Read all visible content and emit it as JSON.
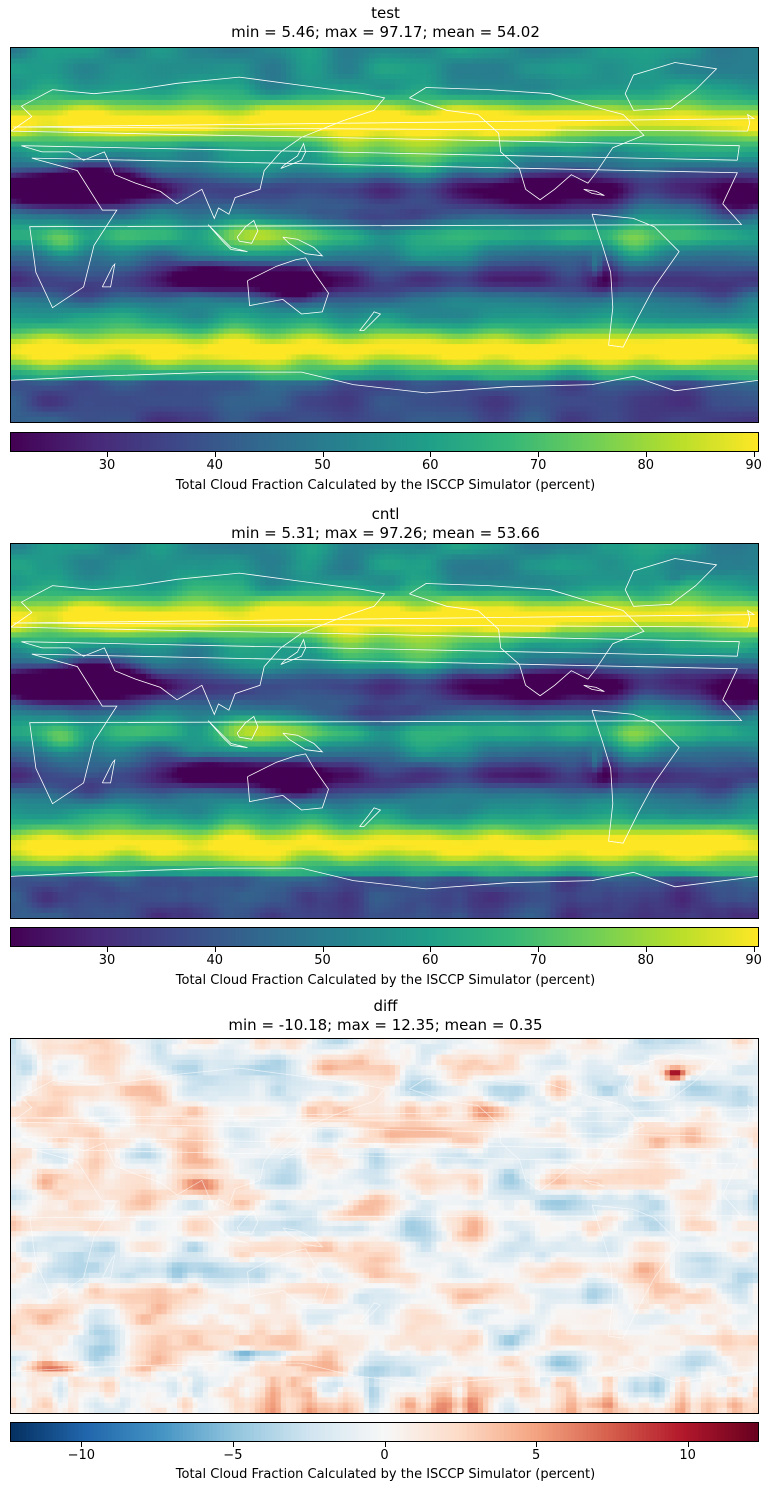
{
  "chart_data": [
    {
      "type": "heatmap",
      "title": "test",
      "subtitle": "min = 5.46; max = 97.17; mean = 54.02",
      "colormap": "viridis",
      "colorbar": {
        "range": [
          21,
          90.5
        ],
        "ticks": [
          30,
          40,
          50,
          60,
          70,
          80,
          90
        ],
        "label": "Total Cloud Fraction Calculated by the ISCCP Simulator (percent)"
      },
      "stats": {
        "min": 5.46,
        "max": 97.17,
        "mean": 54.02
      },
      "grid": false
    },
    {
      "type": "heatmap",
      "title": "cntl",
      "subtitle": "min = 5.31; max = 97.26; mean = 53.66",
      "colormap": "viridis",
      "colorbar": {
        "range": [
          21,
          90.5
        ],
        "ticks": [
          30,
          40,
          50,
          60,
          70,
          80,
          90
        ],
        "label": "Total Cloud Fraction Calculated by the ISCCP Simulator (percent)"
      },
      "stats": {
        "min": 5.31,
        "max": 97.26,
        "mean": 53.66
      },
      "grid": false
    },
    {
      "type": "heatmap",
      "title": "diff",
      "subtitle": "min = -10.18; max = 12.35; mean = 0.35",
      "colormap": "RdBu_r",
      "colorbar": {
        "range": [
          -12.35,
          12.35
        ],
        "ticks": [
          -10,
          -5,
          0,
          5,
          10
        ],
        "tick_labels": [
          "−10",
          "−5",
          "0",
          "5",
          "10"
        ],
        "label": "Total Cloud Fraction Calculated by the ISCCP Simulator (percent)"
      },
      "stats": {
        "min": -10.18,
        "max": 12.35,
        "mean": 0.35
      },
      "grid": false
    }
  ],
  "colors": {
    "viridis": [
      "#440154",
      "#482878",
      "#3e4989",
      "#31688e",
      "#26828e",
      "#1f9e89",
      "#35b779",
      "#6ece58",
      "#b5de2b",
      "#fde725"
    ],
    "rdbu_r": [
      "#053061",
      "#2166ac",
      "#4393c3",
      "#92c5de",
      "#d1e5f0",
      "#f7f7f7",
      "#fddbc7",
      "#f4a582",
      "#d6604d",
      "#b2182b",
      "#67001f"
    ],
    "coastline": "#ffffff"
  }
}
